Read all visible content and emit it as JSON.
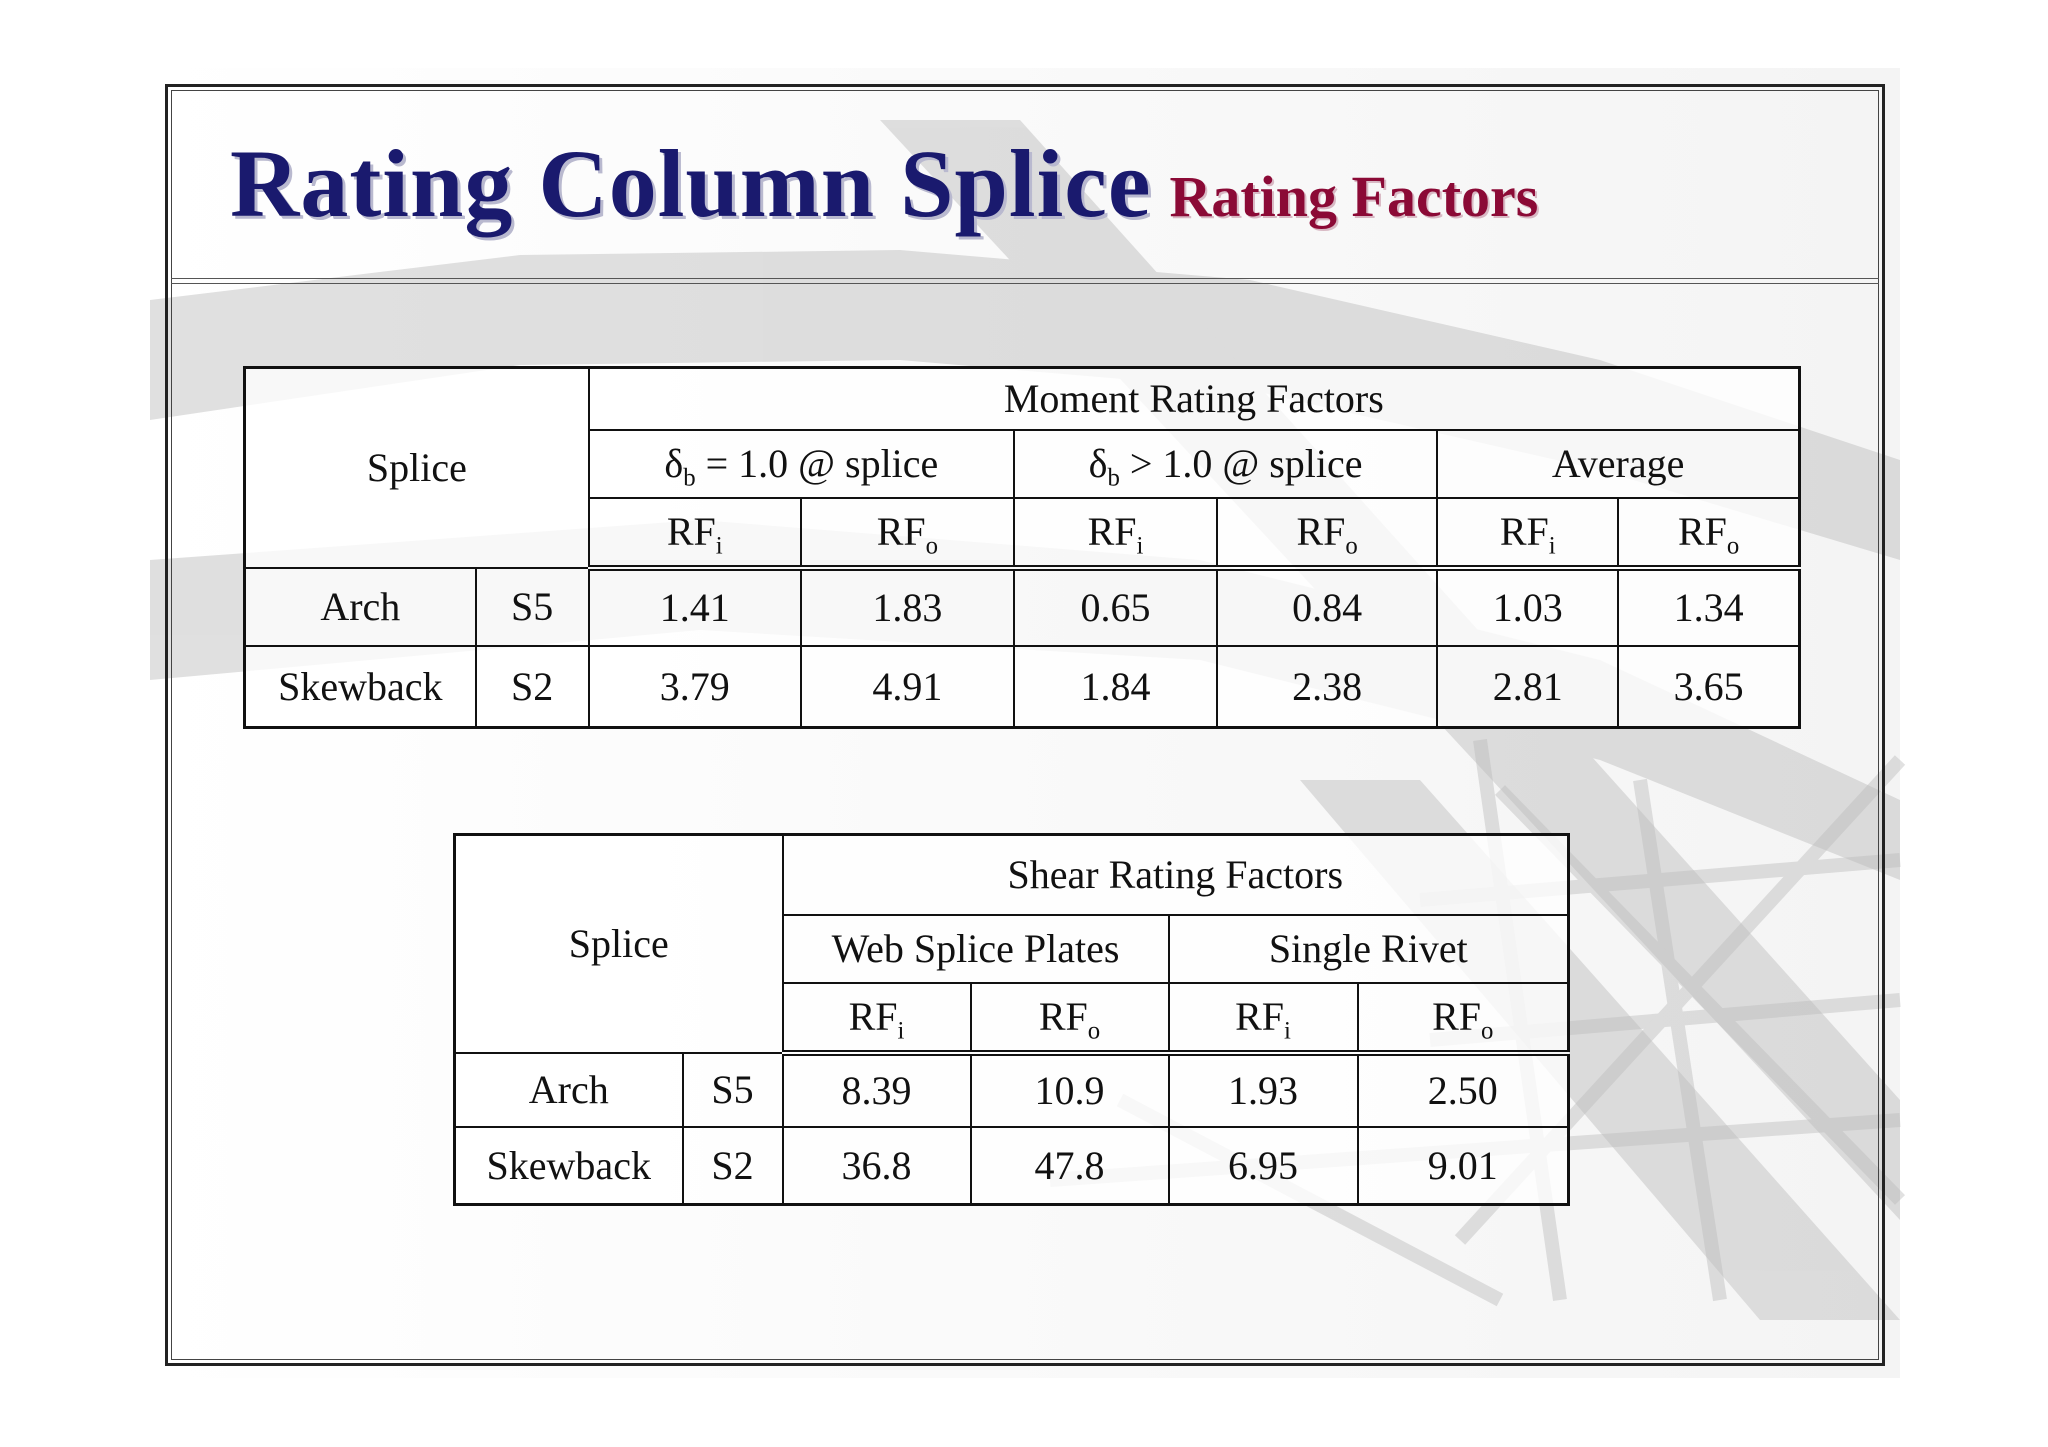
{
  "slide": {
    "title": "Rating Column Splice",
    "subtitle": "Rating Factors"
  },
  "moment_table": {
    "splice_header": "Splice",
    "group_header": "Moment Rating Factors",
    "subgroups": [
      {
        "symbol": "δ",
        "subscript": "b",
        "rest": " = 1.0 @ splice"
      },
      {
        "symbol": "δ",
        "subscript": "b",
        "rest": " > 1.0 @ splice"
      },
      {
        "symbol": "",
        "subscript": "",
        "rest": "Average"
      }
    ],
    "rf_headers": [
      {
        "base": "RF",
        "sub": "i"
      },
      {
        "base": "RF",
        "sub": "o"
      },
      {
        "base": "RF",
        "sub": "i"
      },
      {
        "base": "RF",
        "sub": "o"
      },
      {
        "base": "RF",
        "sub": "i"
      },
      {
        "base": "RF",
        "sub": "o"
      }
    ],
    "rows": [
      {
        "location": "Arch",
        "splice": "S5",
        "values": [
          "1.41",
          "1.83",
          "0.65",
          "0.84",
          "1.03",
          "1.34"
        ]
      },
      {
        "location": "Skewback",
        "splice": "S2",
        "values": [
          "3.79",
          "4.91",
          "1.84",
          "2.38",
          "2.81",
          "3.65"
        ]
      }
    ]
  },
  "shear_table": {
    "splice_header": "Splice",
    "group_header": "Shear Rating Factors",
    "subgroups": [
      "Web Splice Plates",
      "Single Rivet"
    ],
    "rf_headers": [
      {
        "base": "RF",
        "sub": "i"
      },
      {
        "base": "RF",
        "sub": "o"
      },
      {
        "base": "RF",
        "sub": "i"
      },
      {
        "base": "RF",
        "sub": "o"
      }
    ],
    "rows": [
      {
        "location": "Arch",
        "splice": "S5",
        "values": [
          "8.39",
          "10.9",
          "1.93",
          "2.50"
        ]
      },
      {
        "location": "Skewback",
        "splice": "S2",
        "values": [
          "36.8",
          "47.8",
          "6.95",
          "9.01"
        ]
      }
    ]
  }
}
